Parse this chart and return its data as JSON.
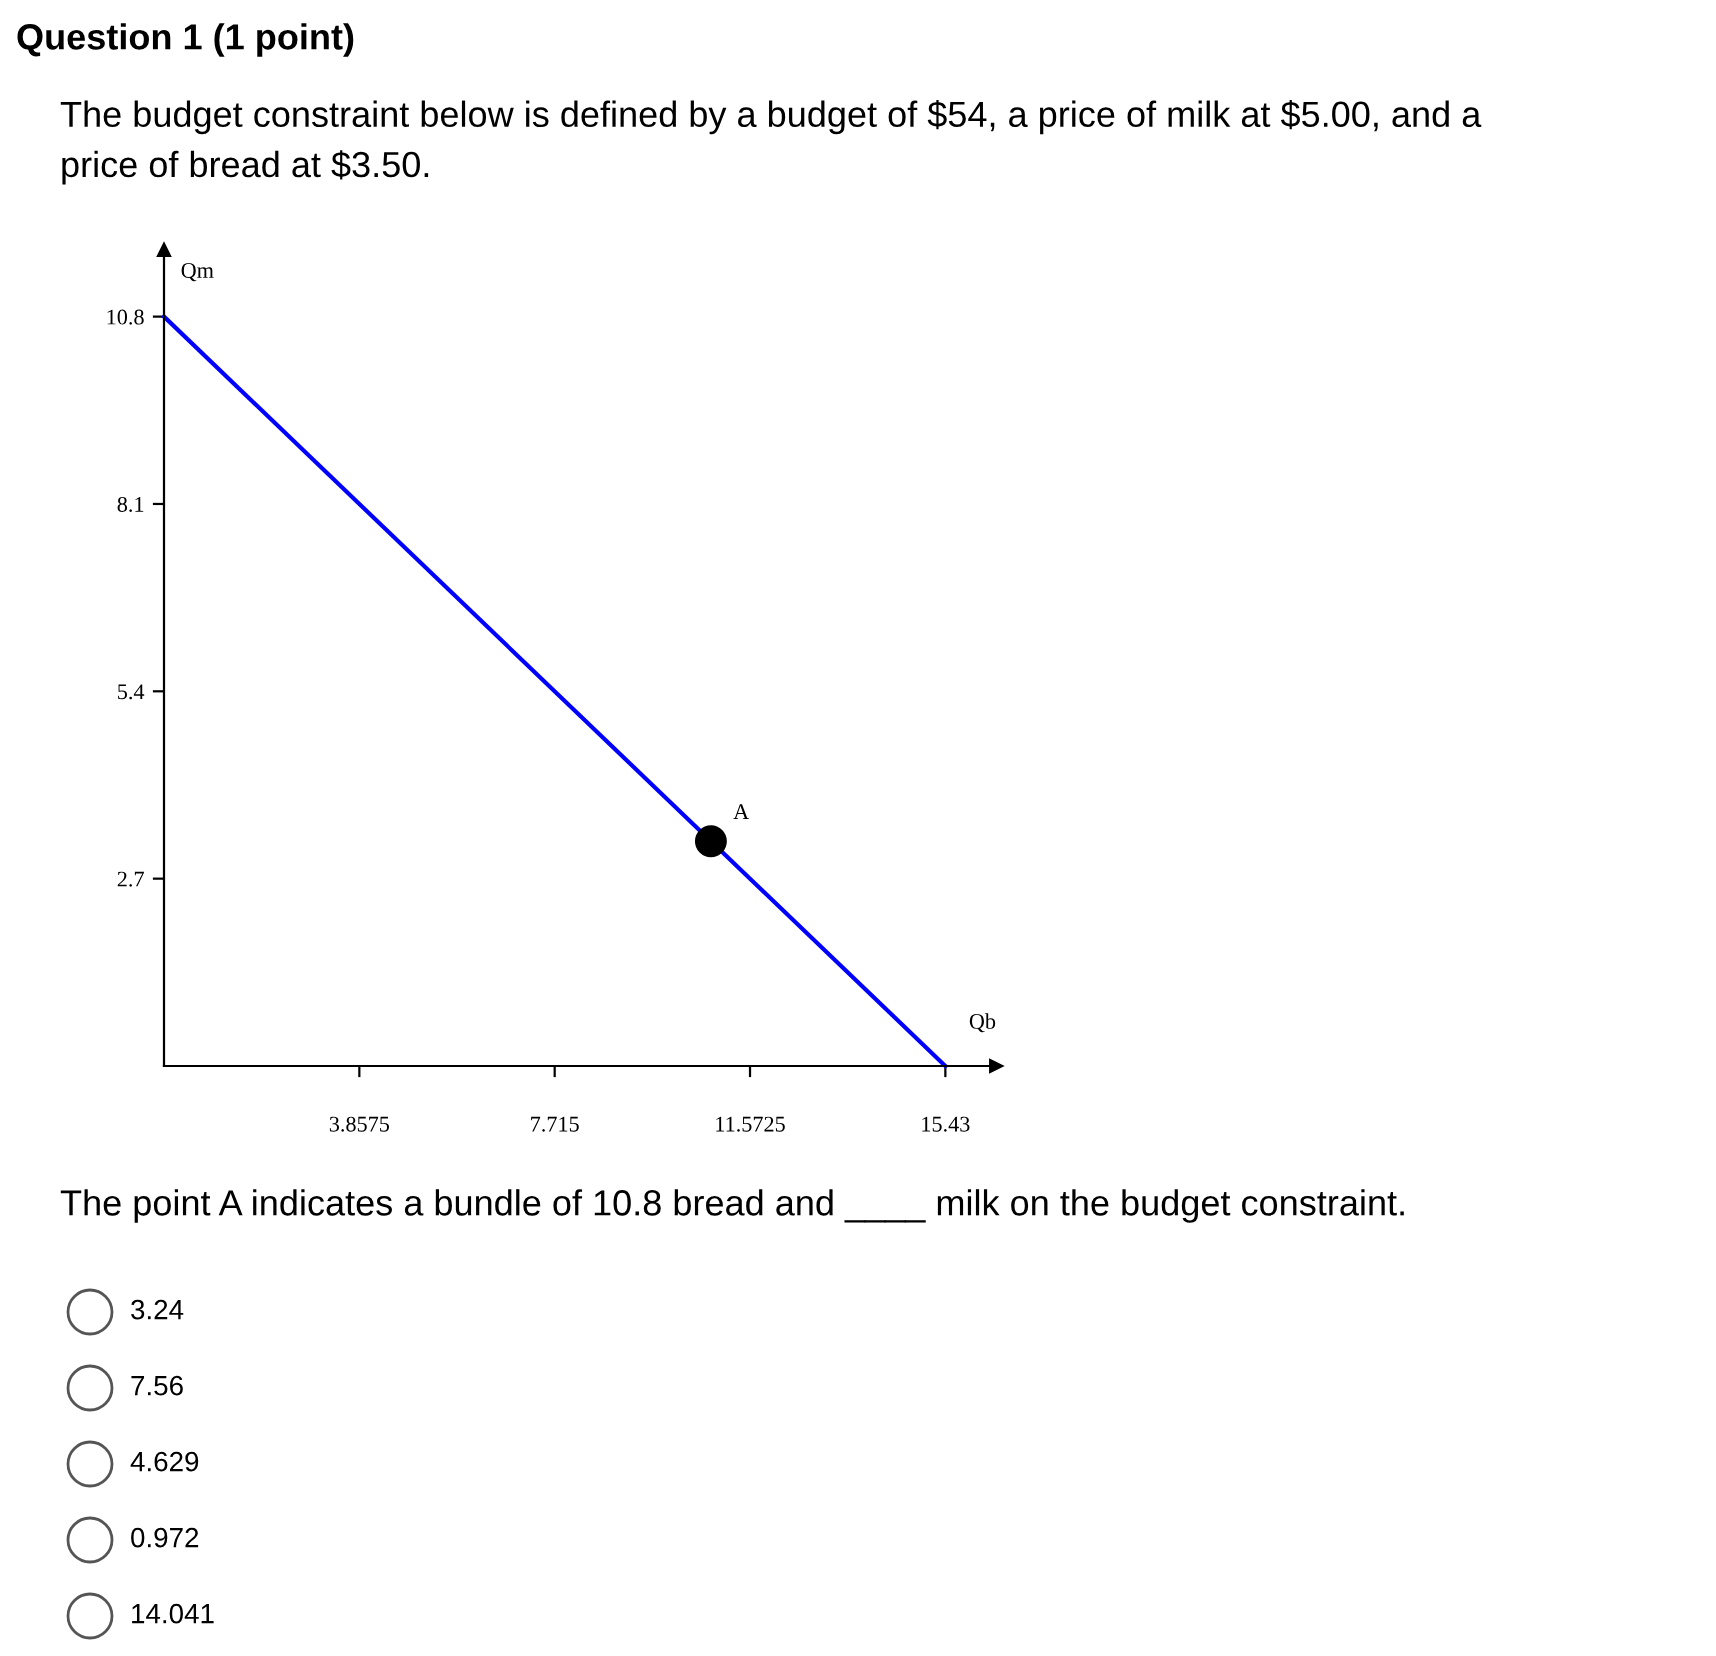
{
  "chart_data": {
    "type": "line",
    "title": "Question 1 (1 point)",
    "subtitle": "The budget constraint below is defined by a budget of $54, a price of milk at $5.00, and a price of bread at $3.50.",
    "xlabel": "Qb",
    "ylabel": "Qm",
    "series": [
      {
        "type": "line",
        "color": "#0000ff",
        "x": [
          0,
          15.43
        ],
        "values": [
          10.8,
          0
        ]
      },
      {
        "type": "scatter",
        "color": "#000000",
        "x": [
          10.8
        ],
        "values": [
          3.24
        ],
        "marker": "circle"
      }
    ],
    "xlim": [
      0,
      16.43
    ],
    "ylim": [
      0,
      11.76
    ],
    "xticks": [
      3.8575,
      7.715,
      11.5725,
      15.43
    ],
    "yticks": [
      2.7,
      8.1,
      5.4,
      10.8
    ],
    "annotations": [
      {
        "text": "A",
        "x": 10.8,
        "y": 3.24
      },
      "The point A indicates a bundle of 10.8 bread and ____ milk on the budget constraint.",
      "3.24",
      "7.56",
      "4.629",
      "0.972",
      "14.041"
    ],
    "grid": false
  }
}
